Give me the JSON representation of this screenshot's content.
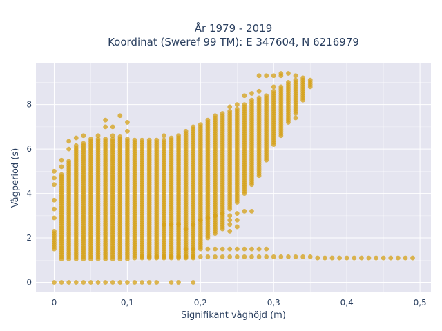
{
  "chart_data": {
    "type": "scatter",
    "title_line1": "År 1979 - 2019",
    "title_line2": "Koordinat (Sweref 99 TM): E 347604, N 6216979",
    "xlabel": "Signifikant våghöjd (m)",
    "ylabel": "Vågperiod (s)",
    "xlim": [
      -0.025,
      0.515
    ],
    "ylim": [
      -0.45,
      9.85
    ],
    "xticks": [
      {
        "value": 0,
        "label": "0"
      },
      {
        "value": 0.1,
        "label": "0,1"
      },
      {
        "value": 0.2,
        "label": "0,2"
      },
      {
        "value": 0.3,
        "label": "0,3"
      },
      {
        "value": 0.4,
        "label": "0,4"
      },
      {
        "value": 0.5,
        "label": "0,5"
      }
    ],
    "yticks": [
      {
        "value": 0,
        "label": "0"
      },
      {
        "value": 2,
        "label": "2"
      },
      {
        "value": 4,
        "label": "4"
      },
      {
        "value": 6,
        "label": "6"
      },
      {
        "value": 8,
        "label": "8"
      }
    ],
    "grid": true,
    "marker_color": "#d4a017",
    "background_color": "#e5e5f0",
    "grid_color": "#ffffff",
    "x_step": 0.01,
    "columns": [
      {
        "x": 0.0,
        "ymin": 1.5,
        "ymax": 2.2,
        "extra": [
          0,
          2.3,
          2.9,
          3.3,
          3.7,
          4.4,
          4.7,
          5.0
        ]
      },
      {
        "x": 0.01,
        "ymin": 1.05,
        "ymax": 4.9,
        "extra": [
          0,
          5.2,
          5.5
        ]
      },
      {
        "x": 0.02,
        "ymin": 1.05,
        "ymax": 5.5,
        "extra": [
          0,
          6.0,
          6.35
        ]
      },
      {
        "x": 0.03,
        "ymin": 1.05,
        "ymax": 6.2,
        "extra": [
          0,
          6.5
        ]
      },
      {
        "x": 0.04,
        "ymin": 1.05,
        "ymax": 6.3,
        "extra": [
          0,
          6.6
        ]
      },
      {
        "x": 0.05,
        "ymin": 1.05,
        "ymax": 6.45,
        "extra": [
          0
        ]
      },
      {
        "x": 0.06,
        "ymin": 1.05,
        "ymax": 6.5,
        "extra": [
          0,
          6.6
        ]
      },
      {
        "x": 0.07,
        "ymin": 1.05,
        "ymax": 6.5,
        "extra": [
          0,
          7.0,
          7.3
        ]
      },
      {
        "x": 0.08,
        "ymin": 1.05,
        "ymax": 6.5,
        "extra": [
          0,
          6.6,
          7.0
        ]
      },
      {
        "x": 0.09,
        "ymin": 1.05,
        "ymax": 6.6,
        "extra": [
          0,
          7.5
        ]
      },
      {
        "x": 0.1,
        "ymin": 1.05,
        "ymax": 6.5,
        "extra": [
          0,
          6.8,
          7.2
        ]
      },
      {
        "x": 0.11,
        "ymin": 1.1,
        "ymax": 6.4,
        "extra": [
          0
        ]
      },
      {
        "x": 0.12,
        "ymin": 1.1,
        "ymax": 6.4,
        "extra": [
          0,
          1.15
        ]
      },
      {
        "x": 0.13,
        "ymin": 1.1,
        "ymax": 6.4,
        "extra": [
          0,
          1.15
        ]
      },
      {
        "x": 0.14,
        "ymin": 1.1,
        "ymax": 6.4,
        "extra": [
          0,
          1.15
        ]
      },
      {
        "x": 0.15,
        "ymin": 1.1,
        "ymax": 6.4,
        "extra": [
          1.15,
          6.6
        ]
      },
      {
        "x": 0.16,
        "ymin": 1.1,
        "ymax": 6.5,
        "extra": [
          0,
          1.15
        ]
      },
      {
        "x": 0.17,
        "ymin": 1.1,
        "ymax": 6.6,
        "extra": [
          0,
          1.15
        ]
      },
      {
        "x": 0.18,
        "ymin": 1.1,
        "ymax": 6.8,
        "extra": [
          1.15,
          1.5
        ]
      },
      {
        "x": 0.19,
        "ymin": 1.1,
        "ymax": 7.0,
        "extra": [
          0,
          1.15,
          1.5
        ]
      },
      {
        "x": 0.2,
        "ymin": 1.6,
        "ymax": 7.1,
        "extra": [
          1.15,
          1.5
        ]
      },
      {
        "x": 0.21,
        "ymin": 2.0,
        "ymax": 7.3,
        "extra": [
          1.15,
          1.5
        ]
      },
      {
        "x": 0.22,
        "ymin": 2.2,
        "ymax": 7.5,
        "extra": [
          1.15,
          1.5
        ]
      },
      {
        "x": 0.23,
        "ymin": 2.4,
        "ymax": 7.6,
        "extra": [
          1.15,
          1.5
        ]
      },
      {
        "x": 0.24,
        "ymin": 3.3,
        "ymax": 7.7,
        "extra": [
          1.15,
          1.5,
          2.3,
          2.6,
          2.8,
          3.0,
          7.9
        ]
      },
      {
        "x": 0.25,
        "ymin": 3.6,
        "ymax": 7.8,
        "extra": [
          1.15,
          1.5,
          2.5,
          2.8,
          3.1,
          8.0
        ]
      },
      {
        "x": 0.26,
        "ymin": 4.0,
        "ymax": 8.0,
        "extra": [
          1.15,
          1.5,
          3.2,
          8.4
        ]
      },
      {
        "x": 0.27,
        "ymin": 4.4,
        "ymax": 8.2,
        "extra": [
          1.15,
          1.5,
          3.2,
          8.5
        ]
      },
      {
        "x": 0.28,
        "ymin": 4.8,
        "ymax": 8.3,
        "extra": [
          1.15,
          1.5,
          8.6,
          9.3
        ]
      },
      {
        "x": 0.29,
        "ymin": 5.5,
        "ymax": 8.4,
        "extra": [
          1.15,
          1.5,
          9.3
        ]
      },
      {
        "x": 0.3,
        "ymin": 6.2,
        "ymax": 8.6,
        "extra": [
          1.15,
          8.8,
          9.3
        ]
      },
      {
        "x": 0.31,
        "ymin": 6.6,
        "ymax": 8.8,
        "extra": [
          1.15,
          9.3,
          9.4
        ]
      },
      {
        "x": 0.32,
        "ymin": 7.2,
        "ymax": 9.0,
        "extra": [
          1.15,
          9.4
        ]
      },
      {
        "x": 0.33,
        "ymin": 7.6,
        "ymax": 9.1,
        "extra": [
          1.15,
          7.4,
          9.3
        ]
      },
      {
        "x": 0.34,
        "ymin": 8.2,
        "ymax": 9.2,
        "extra": [
          1.15
        ]
      },
      {
        "x": 0.35,
        "ymin": 8.8,
        "ymax": 9.1,
        "extra": [
          1.15
        ]
      },
      {
        "x": 0.36,
        "ymin": 1.1,
        "ymax": 1.15,
        "extra": []
      },
      {
        "x": 0.37,
        "ymin": 1.1,
        "ymax": 1.15,
        "extra": []
      },
      {
        "x": 0.38,
        "ymin": 1.1,
        "ymax": 1.15,
        "extra": []
      },
      {
        "x": 0.39,
        "ymin": 1.1,
        "ymax": 1.15,
        "extra": []
      },
      {
        "x": 0.4,
        "ymin": 1.1,
        "ymax": 1.15,
        "extra": []
      },
      {
        "x": 0.41,
        "ymin": 1.1,
        "ymax": 1.15,
        "extra": []
      },
      {
        "x": 0.42,
        "ymin": 1.1,
        "ymax": 1.15,
        "extra": []
      },
      {
        "x": 0.43,
        "ymin": 1.1,
        "ymax": 1.15,
        "extra": []
      },
      {
        "x": 0.44,
        "ymin": 1.1,
        "ymax": 1.15,
        "extra": []
      },
      {
        "x": 0.45,
        "ymin": 1.1,
        "ymax": 1.15,
        "extra": []
      },
      {
        "x": 0.46,
        "ymin": 1.1,
        "ymax": 1.15,
        "extra": []
      },
      {
        "x": 0.47,
        "ymin": 1.1,
        "ymax": 1.15,
        "extra": []
      },
      {
        "x": 0.48,
        "ymin": 1.1,
        "ymax": 1.15,
        "extra": []
      },
      {
        "x": 0.49,
        "ymin": 1.1,
        "ymax": 1.15,
        "extra": []
      }
    ],
    "lower_branch": [
      {
        "x": 0.15,
        "y": 2.6
      },
      {
        "x": 0.16,
        "y": 2.6
      },
      {
        "x": 0.17,
        "y": 2.6
      },
      {
        "x": 0.18,
        "y": 2.4
      },
      {
        "x": 0.19,
        "y": 2.6
      },
      {
        "x": 0.2,
        "y": 2.8
      },
      {
        "x": 0.21,
        "y": 2.9
      },
      {
        "x": 0.22,
        "y": 3.0
      },
      {
        "x": 0.23,
        "y": 3.1
      }
    ]
  }
}
